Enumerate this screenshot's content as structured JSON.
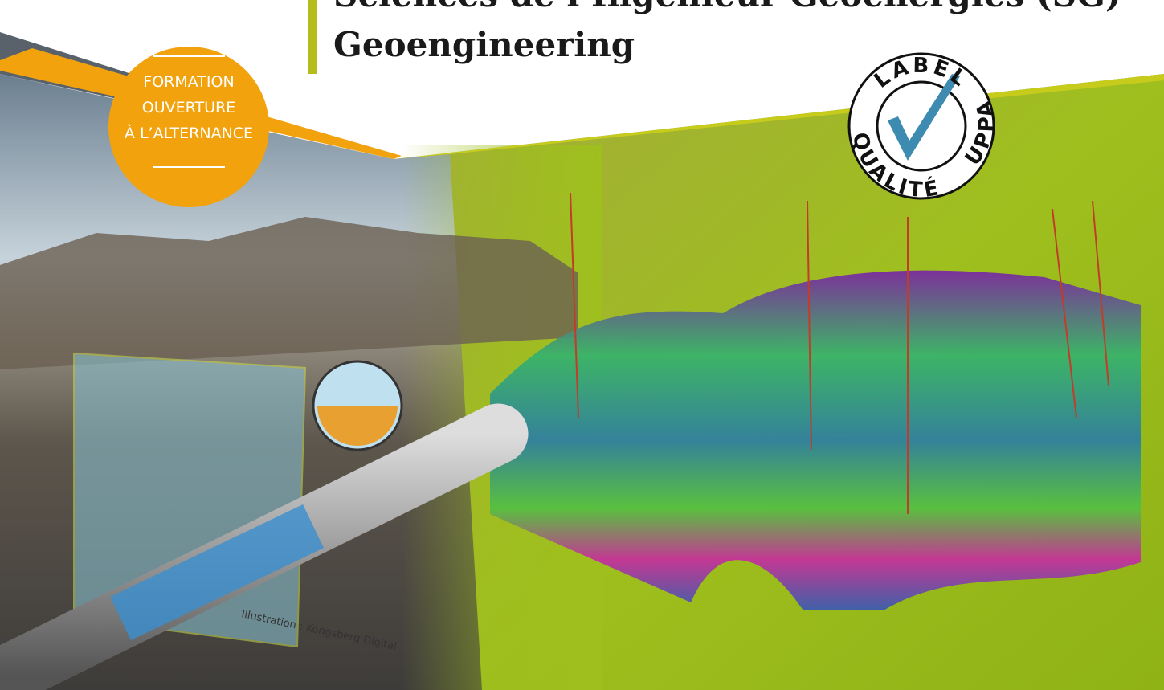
{
  "header": {
    "title_line1": "Sciences de l’Ingénieur Géoénergies (SG)",
    "title_line2": "Geoengineering"
  },
  "badge": {
    "lines": [
      "FORMATION",
      "OUVERTURE",
      "À L’ALTERNANCE"
    ]
  },
  "label": {
    "top": "LABEL",
    "bottom": "QUALITÉ",
    "right": "UPPA"
  },
  "caption": "Illustration : Kongsberg Digital"
}
